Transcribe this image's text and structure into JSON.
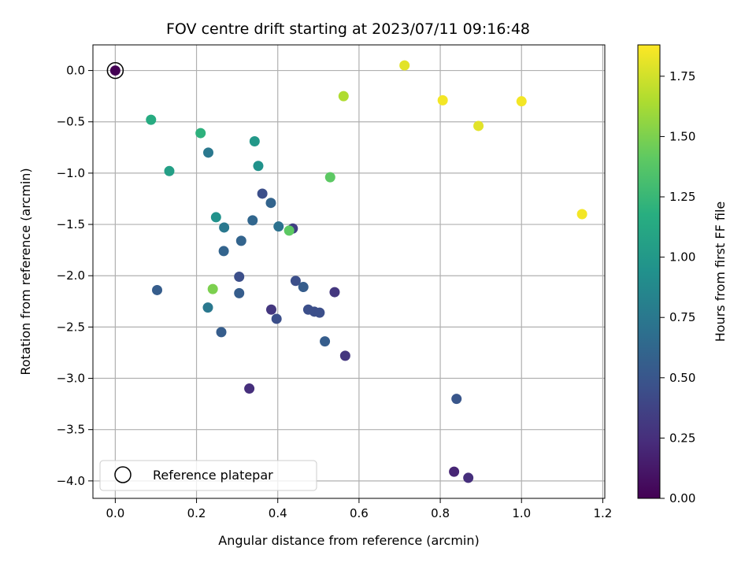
{
  "chart_data": {
    "type": "scatter",
    "title": "FOV centre drift starting at 2023/07/11 09:16:48",
    "xlabel": "Angular distance from reference (arcmin)",
    "ylabel": "Rotation from reference (arcmin)",
    "colorbar_label": "Hours from first FF file",
    "xlim": [
      -0.055,
      1.205
    ],
    "ylim": [
      -4.17,
      0.25
    ],
    "clim": [
      0.0,
      1.88
    ],
    "colormap": "viridis",
    "grid": true,
    "legend_position": "lower-left",
    "x_ticks": [
      "0.0",
      "0.2",
      "0.4",
      "0.6",
      "0.8",
      "1.0",
      "1.2"
    ],
    "x_tick_values": [
      0.0,
      0.2,
      0.4,
      0.6,
      0.8,
      1.0,
      1.2
    ],
    "y_ticks": [
      "0.0",
      "−0.5",
      "−1.0",
      "−1.5",
      "−2.0",
      "−2.5",
      "−3.0",
      "−3.5",
      "−4.0"
    ],
    "y_tick_values": [
      0.0,
      -0.5,
      -1.0,
      -1.5,
      -2.0,
      -2.5,
      -3.0,
      -3.5,
      -4.0
    ],
    "colorbar_ticks": [
      "0.00",
      "0.25",
      "0.50",
      "0.75",
      "1.00",
      "1.25",
      "1.50",
      "1.75"
    ],
    "colorbar_tick_values": [
      0.0,
      0.25,
      0.5,
      0.75,
      1.0,
      1.25,
      1.5,
      1.75
    ],
    "reference": {
      "label": "Reference platepar",
      "x": 0.0,
      "y": 0.0
    },
    "points": [
      {
        "x": 0.0,
        "y": 0.0,
        "hours": 0.0
      },
      {
        "x": 0.088,
        "y": -0.48,
        "hours": 1.15
      },
      {
        "x": 0.21,
        "y": -0.61,
        "hours": 1.2
      },
      {
        "x": 0.229,
        "y": -0.8,
        "hours": 0.75
      },
      {
        "x": 0.343,
        "y": -0.69,
        "hours": 1.0
      },
      {
        "x": 0.133,
        "y": -0.98,
        "hours": 1.05
      },
      {
        "x": 0.352,
        "y": -0.93,
        "hours": 0.95
      },
      {
        "x": 0.362,
        "y": -1.2,
        "hours": 0.45
      },
      {
        "x": 0.383,
        "y": -1.29,
        "hours": 0.6
      },
      {
        "x": 0.248,
        "y": -1.43,
        "hours": 0.95
      },
      {
        "x": 0.338,
        "y": -1.46,
        "hours": 0.62
      },
      {
        "x": 0.268,
        "y": -1.53,
        "hours": 0.75
      },
      {
        "x": 0.402,
        "y": -1.52,
        "hours": 0.7
      },
      {
        "x": 0.437,
        "y": -1.54,
        "hours": 0.35
      },
      {
        "x": 0.428,
        "y": -1.56,
        "hours": 1.4
      },
      {
        "x": 0.31,
        "y": -1.66,
        "hours": 0.6
      },
      {
        "x": 0.267,
        "y": -1.76,
        "hours": 0.6
      },
      {
        "x": 0.529,
        "y": -1.04,
        "hours": 1.4
      },
      {
        "x": 0.562,
        "y": -0.25,
        "hours": 1.65
      },
      {
        "x": 0.305,
        "y": -2.01,
        "hours": 0.45
      },
      {
        "x": 0.103,
        "y": -2.14,
        "hours": 0.55
      },
      {
        "x": 0.24,
        "y": -2.13,
        "hours": 1.5
      },
      {
        "x": 0.305,
        "y": -2.17,
        "hours": 0.55
      },
      {
        "x": 0.444,
        "y": -2.05,
        "hours": 0.45
      },
      {
        "x": 0.463,
        "y": -2.11,
        "hours": 0.55
      },
      {
        "x": 0.54,
        "y": -2.16,
        "hours": 0.3
      },
      {
        "x": 0.228,
        "y": -2.31,
        "hours": 0.75
      },
      {
        "x": 0.384,
        "y": -2.33,
        "hours": 0.3
      },
      {
        "x": 0.475,
        "y": -2.33,
        "hours": 0.45
      },
      {
        "x": 0.49,
        "y": -2.35,
        "hours": 0.45
      },
      {
        "x": 0.503,
        "y": -2.36,
        "hours": 0.45
      },
      {
        "x": 0.397,
        "y": -2.42,
        "hours": 0.45
      },
      {
        "x": 0.261,
        "y": -2.55,
        "hours": 0.55
      },
      {
        "x": 0.516,
        "y": -2.64,
        "hours": 0.55
      },
      {
        "x": 0.566,
        "y": -2.78,
        "hours": 0.3
      },
      {
        "x": 0.33,
        "y": -3.1,
        "hours": 0.25
      },
      {
        "x": 0.84,
        "y": -3.2,
        "hours": 0.5
      },
      {
        "x": 0.834,
        "y": -3.91,
        "hours": 0.2
      },
      {
        "x": 0.869,
        "y": -3.97,
        "hours": 0.25
      },
      {
        "x": 0.712,
        "y": 0.05,
        "hours": 1.8
      },
      {
        "x": 0.806,
        "y": -0.29,
        "hours": 1.85
      },
      {
        "x": 0.894,
        "y": -0.54,
        "hours": 1.8
      },
      {
        "x": 1.0,
        "y": -0.3,
        "hours": 1.85
      },
      {
        "x": 1.149,
        "y": -1.4,
        "hours": 1.85
      }
    ]
  }
}
